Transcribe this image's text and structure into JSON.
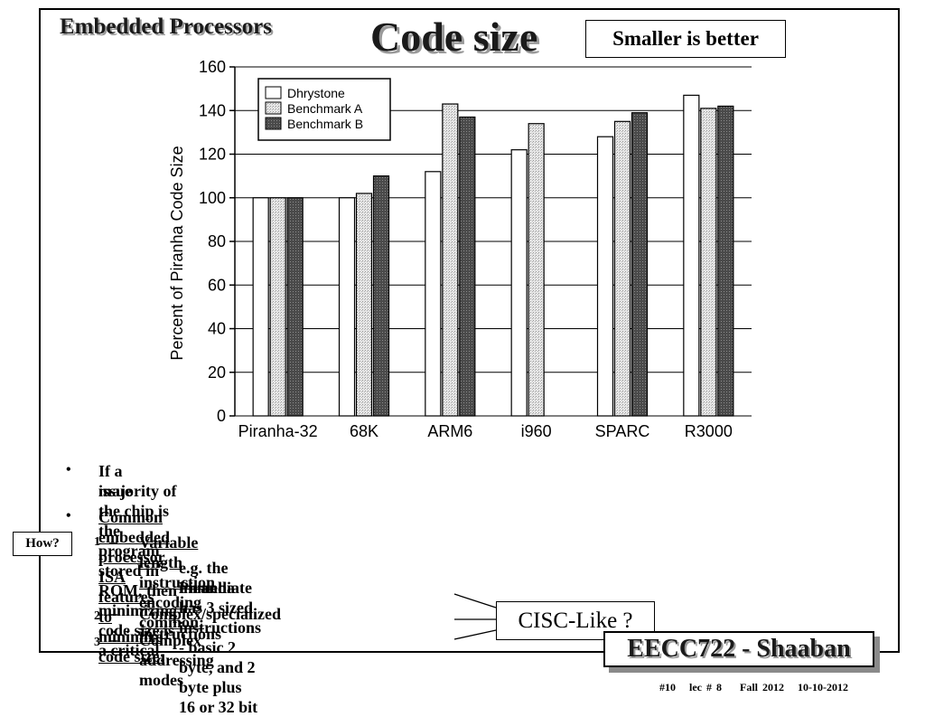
{
  "header": {
    "section_title": "Embedded Processors",
    "title": "Code size",
    "note": "Smaller is better"
  },
  "chart_data": {
    "type": "bar",
    "categories": [
      "Piranha-32",
      "68K",
      "ARM6",
      "i960",
      "SPARC",
      "R3000"
    ],
    "series": [
      {
        "name": "Dhrystone",
        "values": [
          100,
          100,
          112,
          122,
          128,
          147
        ]
      },
      {
        "name": "Benchmark A",
        "values": [
          100,
          102,
          143,
          134,
          135,
          141
        ]
      },
      {
        "name": "Benchmark B",
        "values": [
          100,
          110,
          137,
          null,
          139,
          142
        ]
      }
    ],
    "title": "",
    "xlabel": "",
    "ylabel": "Percent of Piranha Code Size",
    "ylim": [
      0,
      160
    ],
    "yticks": [
      0,
      20,
      40,
      60,
      80,
      100,
      120,
      140,
      160
    ],
    "grid": true,
    "legend_position": "top-left",
    "series_colors": [
      "#ffffff",
      "#d4d4d4",
      "#5a5a5a"
    ]
  },
  "bullets": {
    "b1_line1": "If a majority of the chip is the program stored in ROM, then minimizing code size is a critical",
    "b1_line2": "issue",
    "b2": "Common embedded processor ISA features to minimize code size:",
    "s1_num": "1",
    "s1": "Variable length instruction encoding common:",
    "s1a_line1": "e.g. the Piranha has 3 sized instructions - basic 2 byte, and 2 byte plus 16 or 32 bit",
    "s1a_line2": "immediate",
    "s2_num": "2",
    "s2": "Complex/specialized  instructions",
    "s3_num": "3",
    "s3": "Complex addressing modes",
    "bullet_symbol": "•",
    "dash_symbol": "–"
  },
  "callouts": {
    "how": "How?",
    "cisc": "CISC-Like ?"
  },
  "footer": {
    "course": "EECC722 - Shaaban",
    "slide_info": "#10   lec # 8    Fall 2012   10-10-2012"
  }
}
